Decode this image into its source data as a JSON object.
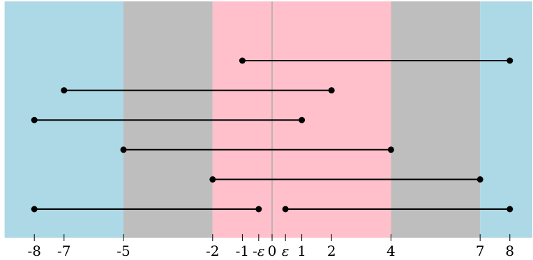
{
  "diagram": {
    "x_range": [
      -9,
      9
    ],
    "bands": [
      {
        "from": -9,
        "to": -5,
        "color": "#add8e6"
      },
      {
        "from": -5,
        "to": -2,
        "color": "#bebebe"
      },
      {
        "from": -2,
        "to": 4,
        "color": "#ffc0cb"
      },
      {
        "from": 4,
        "to": 7,
        "color": "#bebebe"
      },
      {
        "from": 7,
        "to": 9,
        "color": "#add8e6"
      }
    ],
    "axis_line_at": 0,
    "axis_line_color": "#aaaaaa",
    "segments": [
      {
        "row": 1,
        "from": -1,
        "to": 8
      },
      {
        "row": 2,
        "from": -7,
        "to": 2
      },
      {
        "row": 3,
        "from": -8,
        "to": 1
      },
      {
        "row": 4,
        "from": -5,
        "to": 4
      },
      {
        "row": 5,
        "from": -2,
        "to": 7
      },
      {
        "row": 6,
        "from": -8,
        "to": -0.45
      },
      {
        "row": 6,
        "from": 0.45,
        "to": 8
      }
    ],
    "ticks": [
      {
        "value": -8,
        "label": "-8",
        "italic": false
      },
      {
        "value": -7,
        "label": "-7",
        "italic": false
      },
      {
        "value": -5,
        "label": "-5",
        "italic": false
      },
      {
        "value": -2,
        "label": "-2",
        "italic": false
      },
      {
        "value": -1,
        "label": "-1",
        "italic": false
      },
      {
        "value": -0.45,
        "label": "-ε",
        "italic": true
      },
      {
        "value": 0,
        "label": "0",
        "italic": false
      },
      {
        "value": 0.45,
        "label": "ε",
        "italic": true
      },
      {
        "value": 1,
        "label": "1",
        "italic": false
      },
      {
        "value": 2,
        "label": "2",
        "italic": false
      },
      {
        "value": 4,
        "label": "4",
        "italic": false
      },
      {
        "value": 7,
        "label": "7",
        "italic": false
      },
      {
        "value": 8,
        "label": "8",
        "italic": false
      }
    ]
  }
}
